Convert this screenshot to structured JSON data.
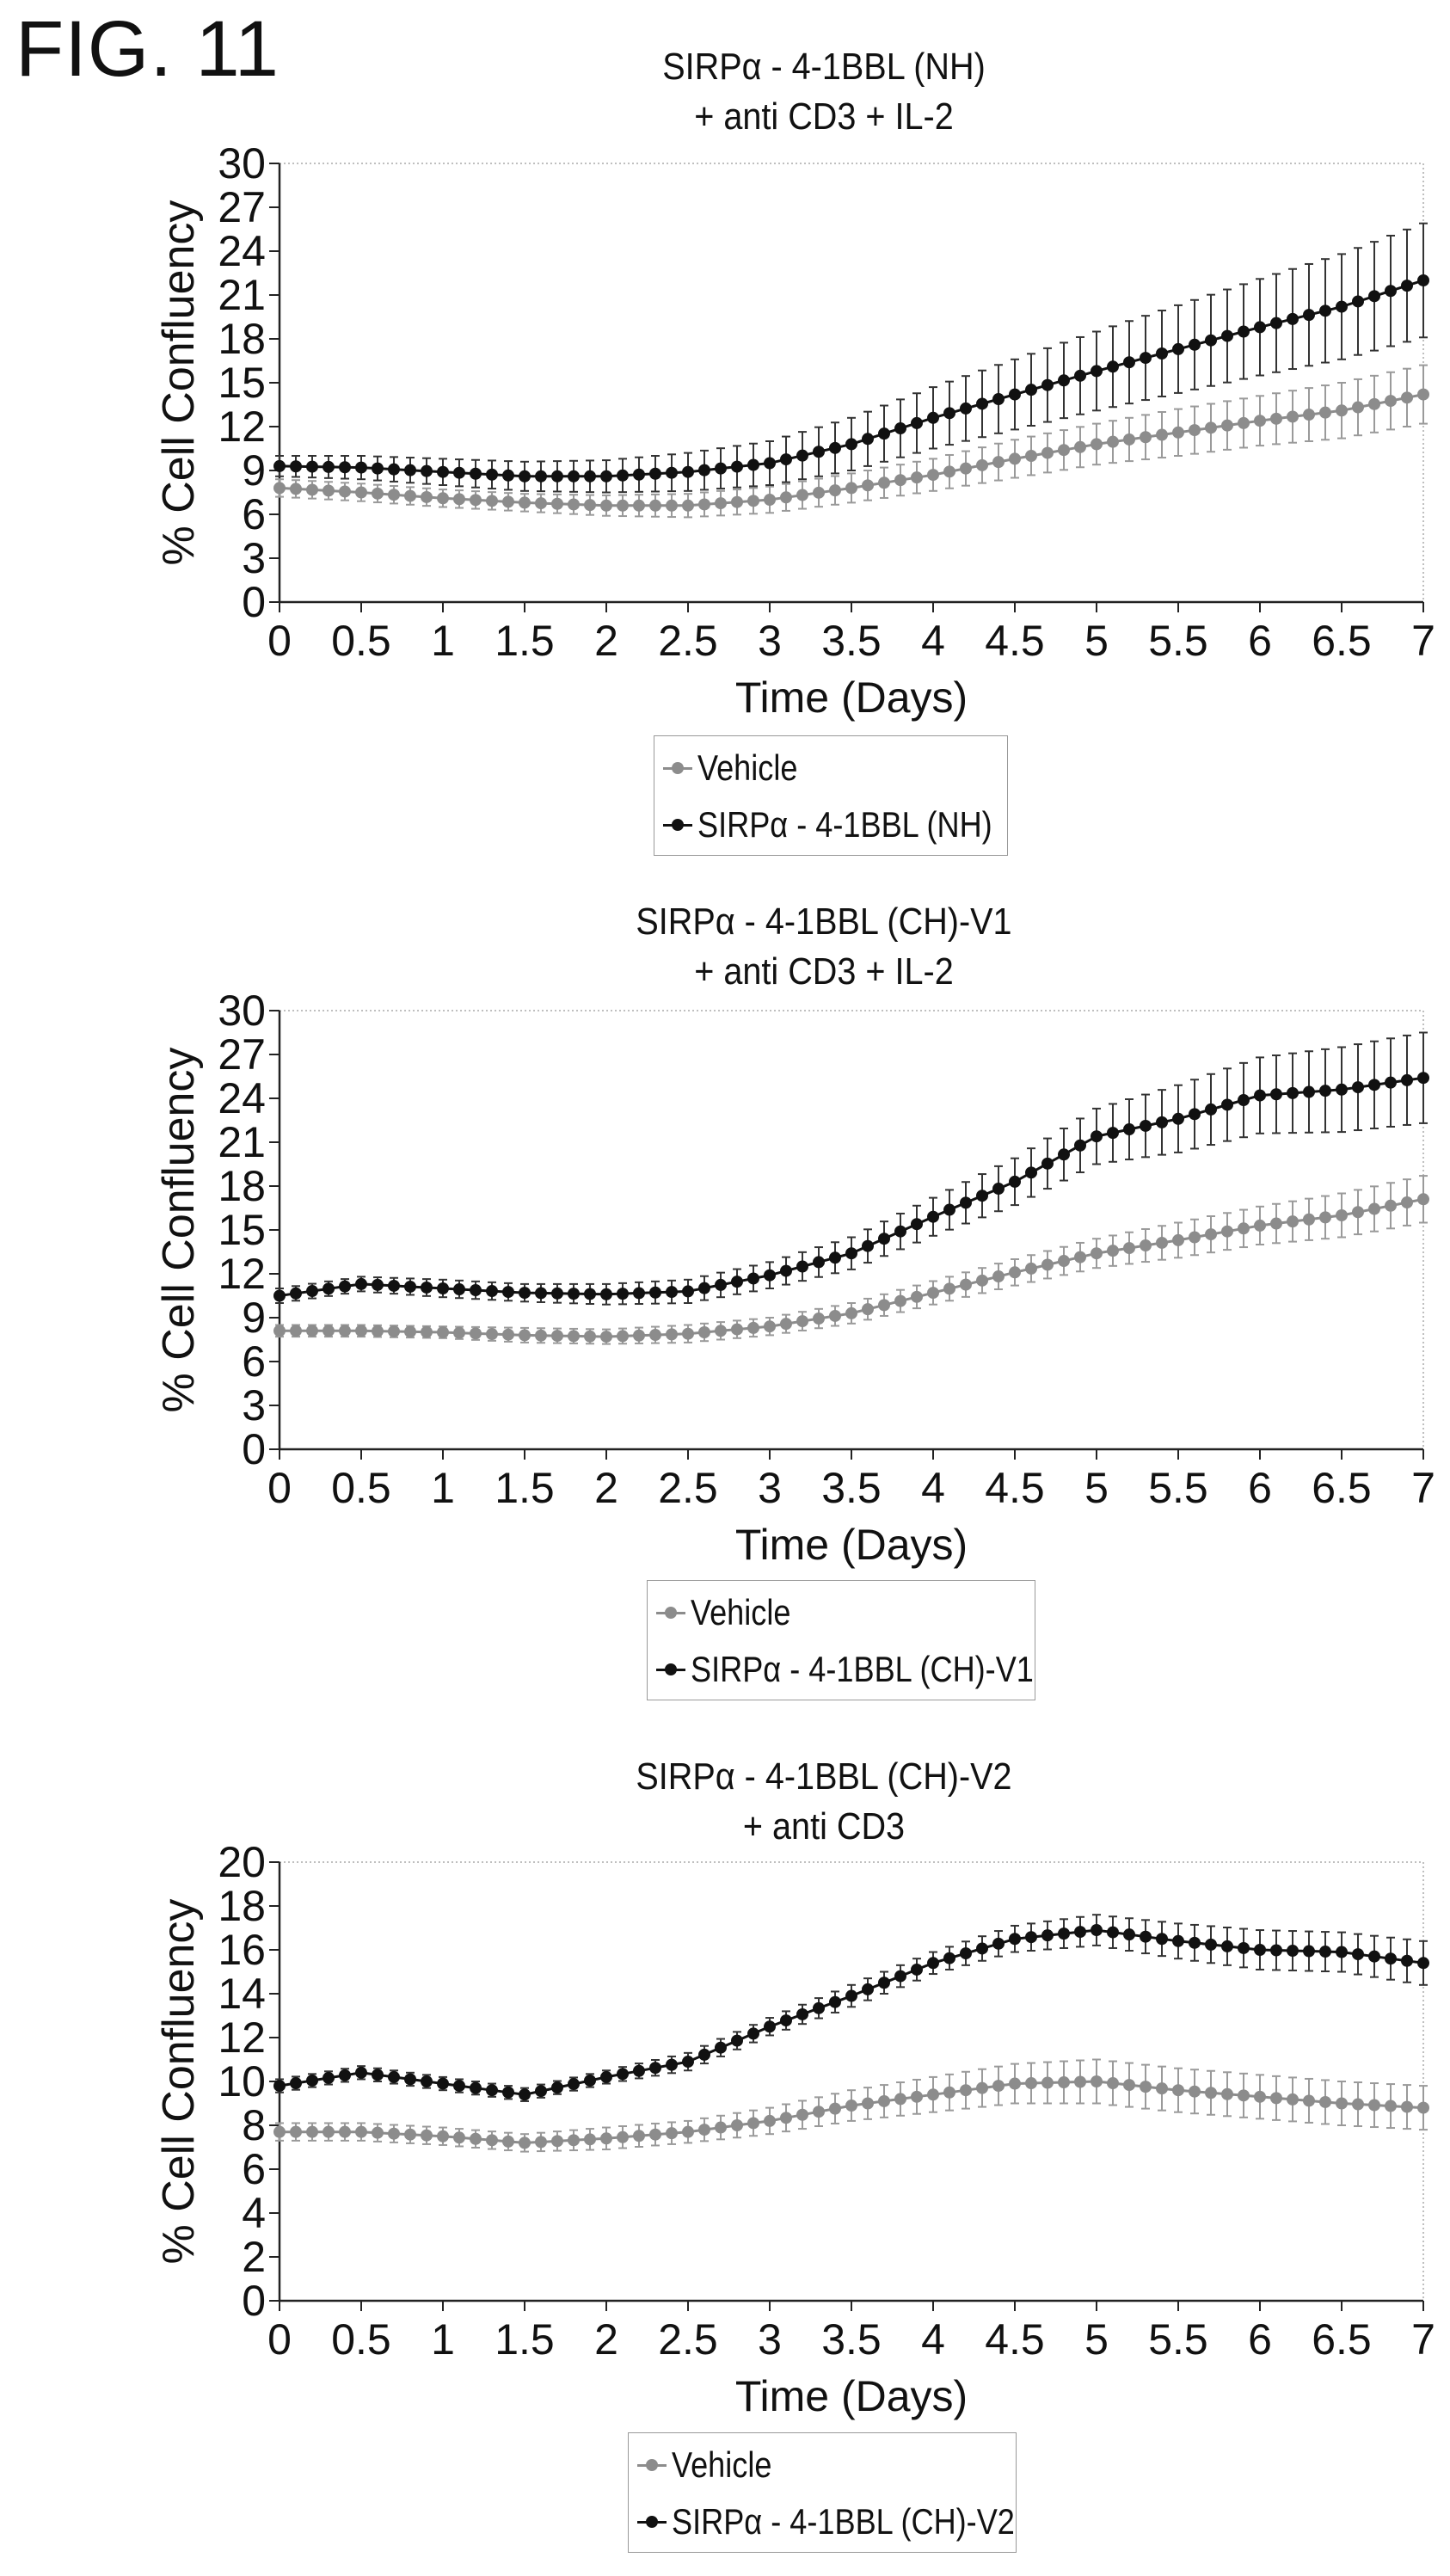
{
  "figure_label": "FIG. 11",
  "colors": {
    "vehicle": "#8c8c8c",
    "treated": "#111111",
    "errorbar_vehicle": "#9a9a9a",
    "errorbar_treated": "#333333"
  },
  "chart_data": [
    {
      "type": "line",
      "title": "SIRPα - 4-1BBL (NH)",
      "subtitle": "+ anti CD3 + IL-2",
      "xlabel": "Time (Days)",
      "ylabel": "% Cell Confluency",
      "xlim": [
        0,
        7
      ],
      "ylim": [
        0,
        30
      ],
      "xticks": [
        "0",
        "0.5",
        "1",
        "1.5",
        "2",
        "2.5",
        "3",
        "3.5",
        "4",
        "4.5",
        "5",
        "5.5",
        "6",
        "6.5",
        "7"
      ],
      "yticks": [
        "0",
        "3",
        "6",
        "9",
        "12",
        "15",
        "18",
        "21",
        "24",
        "27",
        "30"
      ],
      "grid": false,
      "legend_position": "below",
      "x": [
        0,
        0.5,
        1,
        1.5,
        2,
        2.5,
        3,
        3.5,
        4,
        4.5,
        5,
        5.5,
        6,
        6.5,
        7
      ],
      "series": [
        {
          "name": "Vehicle",
          "color_key": "vehicle",
          "values": [
            7.8,
            7.5,
            7.1,
            6.8,
            6.6,
            6.6,
            7.0,
            7.8,
            8.7,
            9.8,
            10.8,
            11.6,
            12.4,
            13.1,
            14.2
          ],
          "error": [
            0.6,
            0.6,
            0.6,
            0.6,
            0.7,
            0.8,
            0.9,
            1.0,
            1.1,
            1.3,
            1.4,
            1.6,
            1.7,
            1.9,
            2.0
          ]
        },
        {
          "name": "SIRPα - 4-1BBL (NH)",
          "color_key": "treated",
          "values": [
            9.3,
            9.2,
            8.9,
            8.6,
            8.6,
            8.9,
            9.5,
            10.8,
            12.6,
            14.2,
            15.8,
            17.3,
            18.8,
            20.2,
            22.0
          ],
          "error": [
            0.7,
            0.8,
            0.9,
            1.0,
            1.1,
            1.3,
            1.5,
            1.8,
            2.1,
            2.4,
            2.7,
            3.0,
            3.3,
            3.6,
            3.9
          ]
        }
      ]
    },
    {
      "type": "line",
      "title": "SIRPα - 4-1BBL (CH)-V1",
      "subtitle": "+ anti CD3 + IL-2",
      "xlabel": "Time (Days)",
      "ylabel": "% Cell Confluency",
      "xlim": [
        0,
        7
      ],
      "ylim": [
        0,
        30
      ],
      "xticks": [
        "0",
        "0.5",
        "1",
        "1.5",
        "2",
        "2.5",
        "3",
        "3.5",
        "4",
        "4.5",
        "5",
        "5.5",
        "6",
        "6.5",
        "7"
      ],
      "yticks": [
        "0",
        "3",
        "6",
        "9",
        "12",
        "15",
        "18",
        "21",
        "24",
        "27",
        "30"
      ],
      "grid": false,
      "legend_position": "below",
      "x": [
        0,
        0.5,
        1,
        1.5,
        2,
        2.5,
        3,
        3.5,
        4,
        4.5,
        5,
        5.5,
        6,
        6.5,
        7
      ],
      "series": [
        {
          "name": "Vehicle",
          "color_key": "vehicle",
          "values": [
            8.1,
            8.1,
            8.0,
            7.8,
            7.7,
            7.9,
            8.4,
            9.3,
            10.7,
            12.1,
            13.4,
            14.3,
            15.3,
            16.0,
            17.1
          ],
          "error": [
            0.4,
            0.4,
            0.4,
            0.5,
            0.5,
            0.6,
            0.6,
            0.7,
            0.8,
            0.9,
            1.0,
            1.2,
            1.3,
            1.5,
            1.6
          ]
        },
        {
          "name": "SIRPα - 4-1BBL (CH)-V1",
          "color_key": "treated",
          "values": [
            10.5,
            11.3,
            11.0,
            10.7,
            10.6,
            10.8,
            11.9,
            13.4,
            15.9,
            18.3,
            21.4,
            22.6,
            24.2,
            24.6,
            25.4
          ],
          "error": [
            0.5,
            0.5,
            0.6,
            0.6,
            0.7,
            0.8,
            0.9,
            1.1,
            1.3,
            1.6,
            1.9,
            2.3,
            2.6,
            2.9,
            3.1
          ]
        }
      ]
    },
    {
      "type": "line",
      "title": "SIRPα - 4-1BBL (CH)-V2",
      "subtitle": "+ anti CD3",
      "xlabel": "Time (Days)",
      "ylabel": "% Cell Confluency",
      "xlim": [
        0,
        7
      ],
      "ylim": [
        0,
        20
      ],
      "xticks": [
        "0",
        "0.5",
        "1",
        "1.5",
        "2",
        "2.5",
        "3",
        "3.5",
        "4",
        "4.5",
        "5",
        "5.5",
        "6",
        "6.5",
        "7"
      ],
      "yticks": [
        "0",
        "2",
        "4",
        "6",
        "8",
        "10",
        "12",
        "14",
        "16",
        "18",
        "20"
      ],
      "grid": false,
      "legend_position": "below",
      "x": [
        0,
        0.5,
        1,
        1.5,
        2,
        2.5,
        3,
        3.5,
        4,
        4.5,
        5,
        5.5,
        6,
        6.5,
        7
      ],
      "series": [
        {
          "name": "Vehicle",
          "color_key": "vehicle",
          "values": [
            7.7,
            7.7,
            7.5,
            7.2,
            7.4,
            7.7,
            8.2,
            8.9,
            9.4,
            9.9,
            10.0,
            9.6,
            9.3,
            9.0,
            8.8
          ],
          "error": [
            0.4,
            0.4,
            0.4,
            0.4,
            0.5,
            0.5,
            0.6,
            0.7,
            0.8,
            0.9,
            1.0,
            1.0,
            1.0,
            1.0,
            1.0
          ]
        },
        {
          "name": "SIRPα - 4-1BBL (CH)-V2",
          "color_key": "treated",
          "values": [
            9.8,
            10.4,
            9.9,
            9.4,
            10.2,
            10.9,
            12.5,
            13.9,
            15.4,
            16.5,
            16.9,
            16.4,
            16.0,
            15.9,
            15.4
          ],
          "error": [
            0.3,
            0.3,
            0.3,
            0.3,
            0.3,
            0.4,
            0.4,
            0.5,
            0.5,
            0.6,
            0.7,
            0.8,
            0.9,
            0.9,
            1.0
          ]
        }
      ]
    }
  ]
}
